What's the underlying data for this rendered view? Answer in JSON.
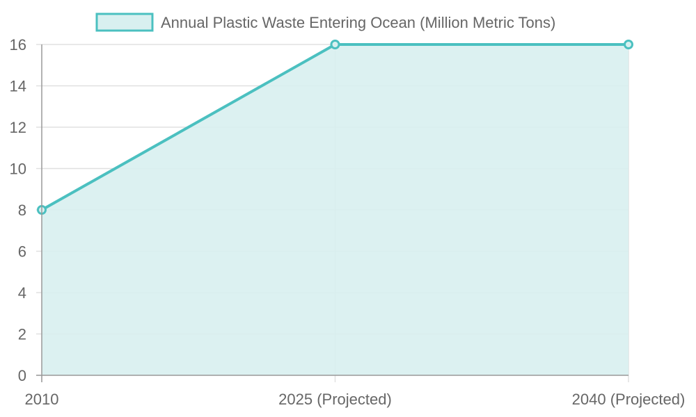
{
  "chart_data": {
    "type": "area",
    "categories": [
      "2010",
      "2025 (Projected)",
      "2040 (Projected)"
    ],
    "series": [
      {
        "name": "Annual Plastic Waste Entering Ocean (Million Metric Tons)",
        "values": [
          8,
          16,
          16
        ]
      }
    ],
    "ylim": [
      0,
      16
    ],
    "yticks": [
      "0",
      "2",
      "4",
      "6",
      "8",
      "10",
      "12",
      "14",
      "16"
    ],
    "grid": true,
    "legend_position": "top-center",
    "colors": {
      "line": "#4bc0c0",
      "fill": "#d8f0f0",
      "grid": "#e0e0e0",
      "axis": "#999999",
      "text": "#666666"
    }
  }
}
